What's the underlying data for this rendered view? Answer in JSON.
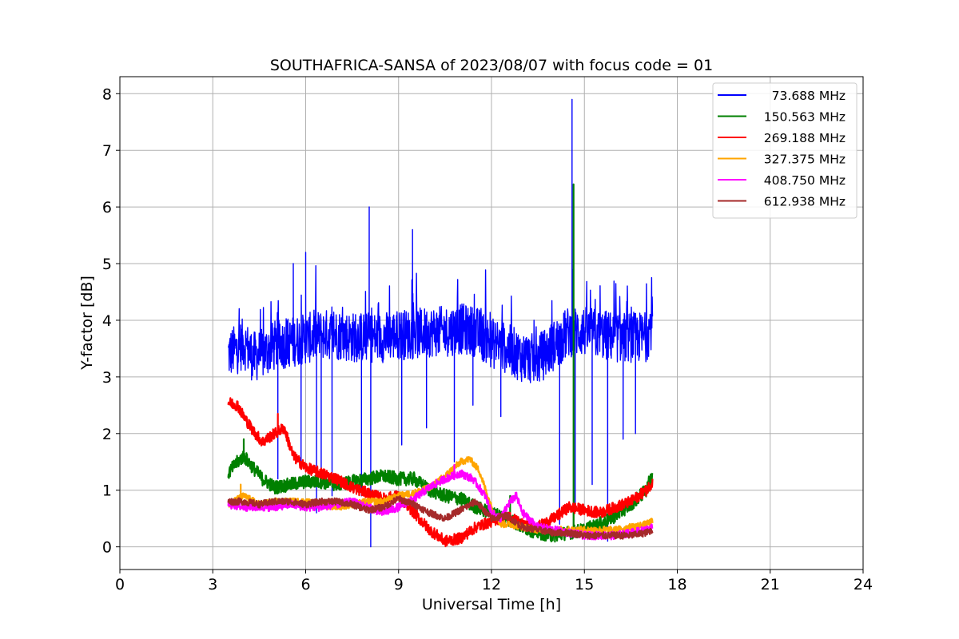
{
  "chart_data": {
    "type": "line",
    "title": "SOUTHAFRICA-SANSA of 2023/08/07 with focus code = 01",
    "xlabel": "Universal Time [h]",
    "ylabel": "Y-factor [dB]",
    "xlim": [
      0,
      24
    ],
    "ylim": [
      -0.4,
      8.3
    ],
    "xticks": [
      0,
      3,
      6,
      9,
      12,
      15,
      18,
      21,
      24
    ],
    "yticks": [
      0,
      1,
      2,
      3,
      4,
      5,
      6,
      7,
      8
    ],
    "grid": true,
    "legend_position": "top-right",
    "series": [
      {
        "name": "73.688 MHz",
        "color": "#0000ff",
        "x": [
          3.5,
          3.8,
          4.0,
          4.3,
          4.6,
          5.0,
          5.4,
          5.8,
          6.2,
          6.6,
          7.0,
          7.5,
          8.0,
          8.5,
          9.0,
          9.5,
          10.0,
          10.5,
          11.0,
          11.5,
          12.0,
          12.5,
          13.0,
          13.5,
          14.0,
          14.5,
          15.0,
          15.5,
          16.0,
          16.5,
          17.0,
          17.2
        ],
        "y": [
          3.4,
          3.5,
          3.6,
          3.35,
          3.4,
          3.55,
          3.6,
          3.65,
          3.7,
          3.75,
          3.75,
          3.7,
          3.7,
          3.7,
          3.75,
          3.75,
          3.8,
          3.8,
          3.85,
          3.8,
          3.6,
          3.5,
          3.35,
          3.3,
          3.55,
          3.8,
          3.8,
          3.75,
          3.7,
          3.7,
          3.7,
          4.0
        ],
        "amplitude": 0.45,
        "spikes": [
          [
            5.1,
            1.2
          ],
          [
            5.6,
            5.0
          ],
          [
            5.85,
            1.5
          ],
          [
            6.0,
            5.2
          ],
          [
            6.35,
            0.6
          ],
          [
            6.5,
            1.2
          ],
          [
            6.85,
            0.9
          ],
          [
            7.8,
            0.9
          ],
          [
            8.05,
            6.0
          ],
          [
            8.1,
            0.0
          ],
          [
            9.1,
            1.8
          ],
          [
            9.45,
            5.6
          ],
          [
            9.9,
            2.1
          ],
          [
            10.8,
            1.5
          ],
          [
            11.4,
            2.5
          ],
          [
            12.3,
            2.3
          ],
          [
            14.2,
            0.4
          ],
          [
            14.6,
            7.9
          ],
          [
            14.7,
            0.7
          ],
          [
            15.25,
            1.1
          ],
          [
            15.75,
            0.1
          ],
          [
            16.25,
            1.9
          ],
          [
            16.65,
            2.0
          ]
        ]
      },
      {
        "name": "150.563 MHz",
        "color": "#008000",
        "x": [
          3.5,
          3.8,
          4.0,
          4.3,
          4.6,
          5.0,
          5.5,
          6.0,
          6.5,
          7.0,
          7.5,
          8.0,
          8.5,
          9.0,
          9.5,
          10.0,
          10.5,
          11.0,
          11.5,
          12.0,
          12.5,
          13.0,
          13.5,
          14.0,
          14.5,
          15.0,
          15.5,
          16.0,
          16.5,
          17.0,
          17.2
        ],
        "y": [
          1.3,
          1.5,
          1.6,
          1.4,
          1.2,
          1.05,
          1.1,
          1.15,
          1.15,
          1.1,
          1.15,
          1.2,
          1.25,
          1.2,
          1.2,
          1.0,
          0.9,
          0.85,
          0.7,
          0.6,
          0.5,
          0.35,
          0.25,
          0.2,
          0.25,
          0.3,
          0.4,
          0.55,
          0.75,
          1.0,
          1.3
        ],
        "amplitude": 0.12,
        "spikes": [
          [
            4.0,
            1.9
          ],
          [
            12.6,
            0.9
          ],
          [
            14.65,
            6.4
          ]
        ]
      },
      {
        "name": "269.188 MHz",
        "color": "#ff0000",
        "x": [
          3.5,
          3.8,
          4.0,
          4.3,
          4.6,
          5.0,
          5.3,
          5.6,
          6.0,
          6.5,
          7.0,
          7.5,
          8.0,
          8.5,
          9.0,
          9.5,
          10.0,
          10.5,
          11.0,
          11.5,
          12.0,
          12.5,
          13.0,
          13.5,
          14.0,
          14.5,
          15.0,
          15.5,
          16.0,
          16.5,
          17.0,
          17.2
        ],
        "y": [
          2.55,
          2.5,
          2.3,
          2.05,
          1.85,
          2.0,
          2.1,
          1.6,
          1.4,
          1.3,
          1.2,
          1.05,
          0.95,
          0.85,
          0.9,
          0.6,
          0.3,
          0.1,
          0.15,
          0.35,
          0.45,
          0.55,
          0.4,
          0.35,
          0.5,
          0.7,
          0.65,
          0.6,
          0.7,
          0.8,
          1.0,
          1.15
        ],
        "amplitude": 0.1,
        "spikes": [
          [
            5.1,
            2.35
          ]
        ]
      },
      {
        "name": "327.375 MHz",
        "color": "#ffa500",
        "x": [
          3.5,
          4.0,
          4.5,
          5.0,
          5.5,
          6.0,
          6.5,
          7.0,
          7.5,
          8.0,
          8.5,
          9.0,
          9.5,
          10.0,
          10.5,
          11.0,
          11.3,
          11.6,
          12.0,
          12.3,
          12.6,
          13.0,
          13.5,
          14.0,
          14.5,
          15.0,
          15.5,
          16.0,
          16.5,
          17.0,
          17.2
        ],
        "y": [
          0.75,
          0.9,
          0.75,
          0.8,
          0.8,
          0.8,
          0.75,
          0.7,
          0.75,
          0.8,
          0.8,
          0.9,
          0.95,
          1.05,
          1.25,
          1.5,
          1.55,
          1.35,
          0.7,
          0.4,
          0.4,
          0.35,
          0.3,
          0.3,
          0.3,
          0.3,
          0.3,
          0.3,
          0.35,
          0.4,
          0.45
        ],
        "amplitude": 0.06,
        "spikes": [
          [
            3.9,
            1.1
          ]
        ]
      },
      {
        "name": "408.750 MHz",
        "color": "#ff00ff",
        "x": [
          3.5,
          4.0,
          4.5,
          5.0,
          5.5,
          6.0,
          6.5,
          7.0,
          7.5,
          8.0,
          8.5,
          9.0,
          9.5,
          10.0,
          10.5,
          11.0,
          11.4,
          11.8,
          12.0,
          12.3,
          12.6,
          12.8,
          13.0,
          13.5,
          14.0,
          14.5,
          15.0,
          15.5,
          16.0,
          16.5,
          17.0,
          17.2
        ],
        "y": [
          0.75,
          0.7,
          0.7,
          0.7,
          0.75,
          0.7,
          0.7,
          0.75,
          0.8,
          0.7,
          0.6,
          0.7,
          0.85,
          1.05,
          1.2,
          1.3,
          1.2,
          0.9,
          0.6,
          0.5,
          0.8,
          0.9,
          0.6,
          0.35,
          0.3,
          0.25,
          0.2,
          0.2,
          0.2,
          0.25,
          0.3,
          0.35
        ],
        "amplitude": 0.07,
        "spikes": [
          [
            10.8,
            1.45
          ]
        ]
      },
      {
        "name": "612.938 MHz",
        "color": "#a52a2a",
        "x": [
          3.5,
          4.0,
          4.5,
          5.0,
          5.5,
          6.0,
          6.5,
          7.0,
          7.5,
          8.0,
          8.5,
          9.0,
          9.5,
          10.0,
          10.5,
          11.0,
          11.5,
          12.0,
          12.5,
          13.0,
          13.5,
          14.0,
          14.5,
          15.0,
          15.5,
          16.0,
          16.5,
          17.0,
          17.2
        ],
        "y": [
          0.8,
          0.8,
          0.75,
          0.8,
          0.8,
          0.75,
          0.8,
          0.8,
          0.75,
          0.65,
          0.7,
          0.85,
          0.75,
          0.6,
          0.5,
          0.65,
          0.8,
          0.5,
          0.55,
          0.35,
          0.3,
          0.25,
          0.25,
          0.2,
          0.2,
          0.2,
          0.2,
          0.25,
          0.3
        ],
        "amplitude": 0.06,
        "spikes": []
      }
    ]
  }
}
